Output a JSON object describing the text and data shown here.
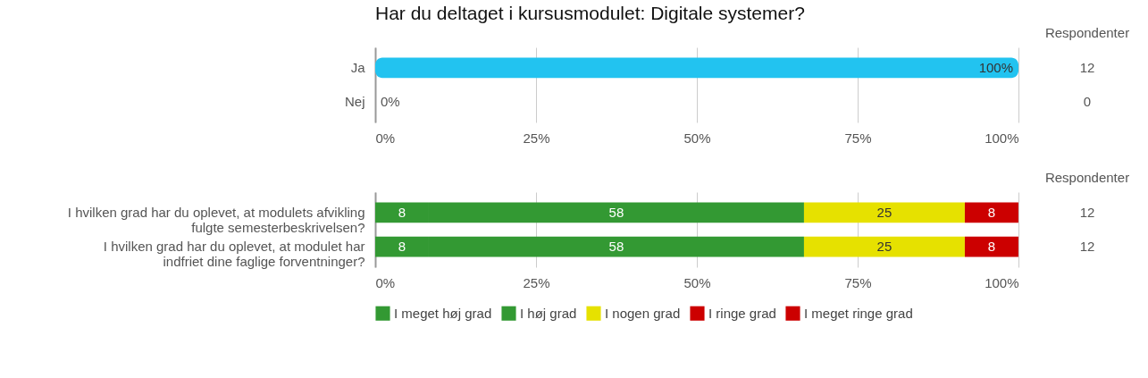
{
  "chart_data": [
    {
      "type": "bar",
      "orientation": "horizontal",
      "title": "Har du deltaget i kursusmodulet: Digitale systemer?",
      "categories": [
        "Ja",
        "Nej"
      ],
      "values": [
        100,
        0
      ],
      "value_labels": [
        "100%",
        "0%"
      ],
      "color": "#22c3f0",
      "xlim": [
        0,
        100
      ],
      "xticks": [
        {
          "value": 0,
          "label": "0%"
        },
        {
          "value": 25,
          "label": "25%"
        },
        {
          "value": 50,
          "label": "50%"
        },
        {
          "value": 75,
          "label": "75%"
        },
        {
          "value": 100,
          "label": "100%"
        }
      ],
      "grid": "x",
      "annotations": [
        "Respondenter",
        "12",
        "0"
      ]
    },
    {
      "type": "bar",
      "orientation": "horizontal",
      "stacked": true,
      "categories": [
        "I hvilken grad har du oplevet, at modulets afvikling fulgte semesterbeskrivelsen?",
        "I hvilken grad har du oplevet, at modulet har indfriet dine faglige forventninger?"
      ],
      "series": [
        {
          "name": "I meget høj grad",
          "color": "#339933",
          "values": [
            8.33,
            8.33
          ],
          "value_labels": [
            "8",
            "8"
          ]
        },
        {
          "name": "I høj grad",
          "color": "#339933",
          "values": [
            58.33,
            58.33
          ],
          "value_labels": [
            "58",
            "58"
          ]
        },
        {
          "name": "I nogen grad",
          "color": "#e6e100",
          "values": [
            25,
            25
          ],
          "value_labels": [
            "25",
            "25"
          ]
        },
        {
          "name": "I ringe grad",
          "color": "#cc0000",
          "values": [
            8.33,
            8.33
          ],
          "value_labels": [
            "8",
            "8"
          ]
        },
        {
          "name": "I meget ringe grad",
          "color": "#cc0000",
          "values": [
            0,
            0
          ],
          "value_labels": [
            null,
            null
          ]
        }
      ],
      "xlim": [
        0,
        100
      ],
      "xticks": [
        {
          "value": 0,
          "label": "0%"
        },
        {
          "value": 25,
          "label": "25%"
        },
        {
          "value": 50,
          "label": "50%"
        },
        {
          "value": 75,
          "label": "75%"
        },
        {
          "value": 100,
          "label": "100%"
        }
      ],
      "grid": "x",
      "legend": "bottom",
      "annotations": [
        "Respondenter",
        "12",
        "12"
      ]
    }
  ]
}
